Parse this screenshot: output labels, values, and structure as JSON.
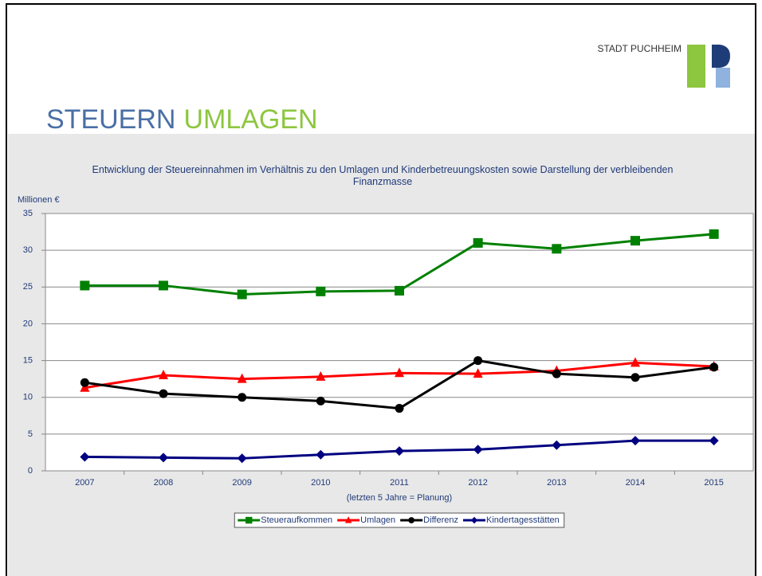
{
  "header": {
    "brand": "STADT PUCHHEIM",
    "title": [
      "STEUERN",
      "UMLAGEN"
    ]
  },
  "chart_data": {
    "type": "line",
    "title": "Entwicklung der Steuereinnahmen im Verhältnis zu den Umlagen und Kinderbetreuungskosten sowie Darstellung der verbleibenden Finanzmasse",
    "y_label": "Millionen €",
    "x_label": "(letzten 5 Jahre = Planung)",
    "categories": [
      "2007",
      "2008",
      "2009",
      "2010",
      "2011",
      "2012",
      "2013",
      "2014",
      "2015"
    ],
    "series": [
      {
        "name": "Steueraufkommen",
        "color": "#008000",
        "marker": "square",
        "values": [
          25.2,
          25.2,
          24.0,
          24.4,
          24.5,
          31.0,
          30.2,
          31.3,
          32.2
        ]
      },
      {
        "name": "Umlagen",
        "color": "#ff0000",
        "marker": "triangle",
        "values": [
          11.3,
          13.0,
          12.5,
          12.8,
          13.3,
          13.2,
          13.6,
          14.7,
          14.2
        ]
      },
      {
        "name": "Differenz",
        "color": "#000000",
        "marker": "circle",
        "values": [
          12.0,
          10.5,
          10.0,
          9.5,
          8.5,
          15.0,
          13.2,
          12.7,
          14.1
        ]
      },
      {
        "name": "Kindertagesstätten",
        "color": "#000080",
        "marker": "diamond",
        "values": [
          1.9,
          1.8,
          1.7,
          2.2,
          2.7,
          2.9,
          3.5,
          4.1,
          4.1
        ]
      }
    ],
    "ylim": [
      0,
      35
    ],
    "yticks": [
      0,
      5,
      10,
      15,
      20,
      25,
      30,
      35
    ],
    "grid": true,
    "legend": "bottom"
  }
}
